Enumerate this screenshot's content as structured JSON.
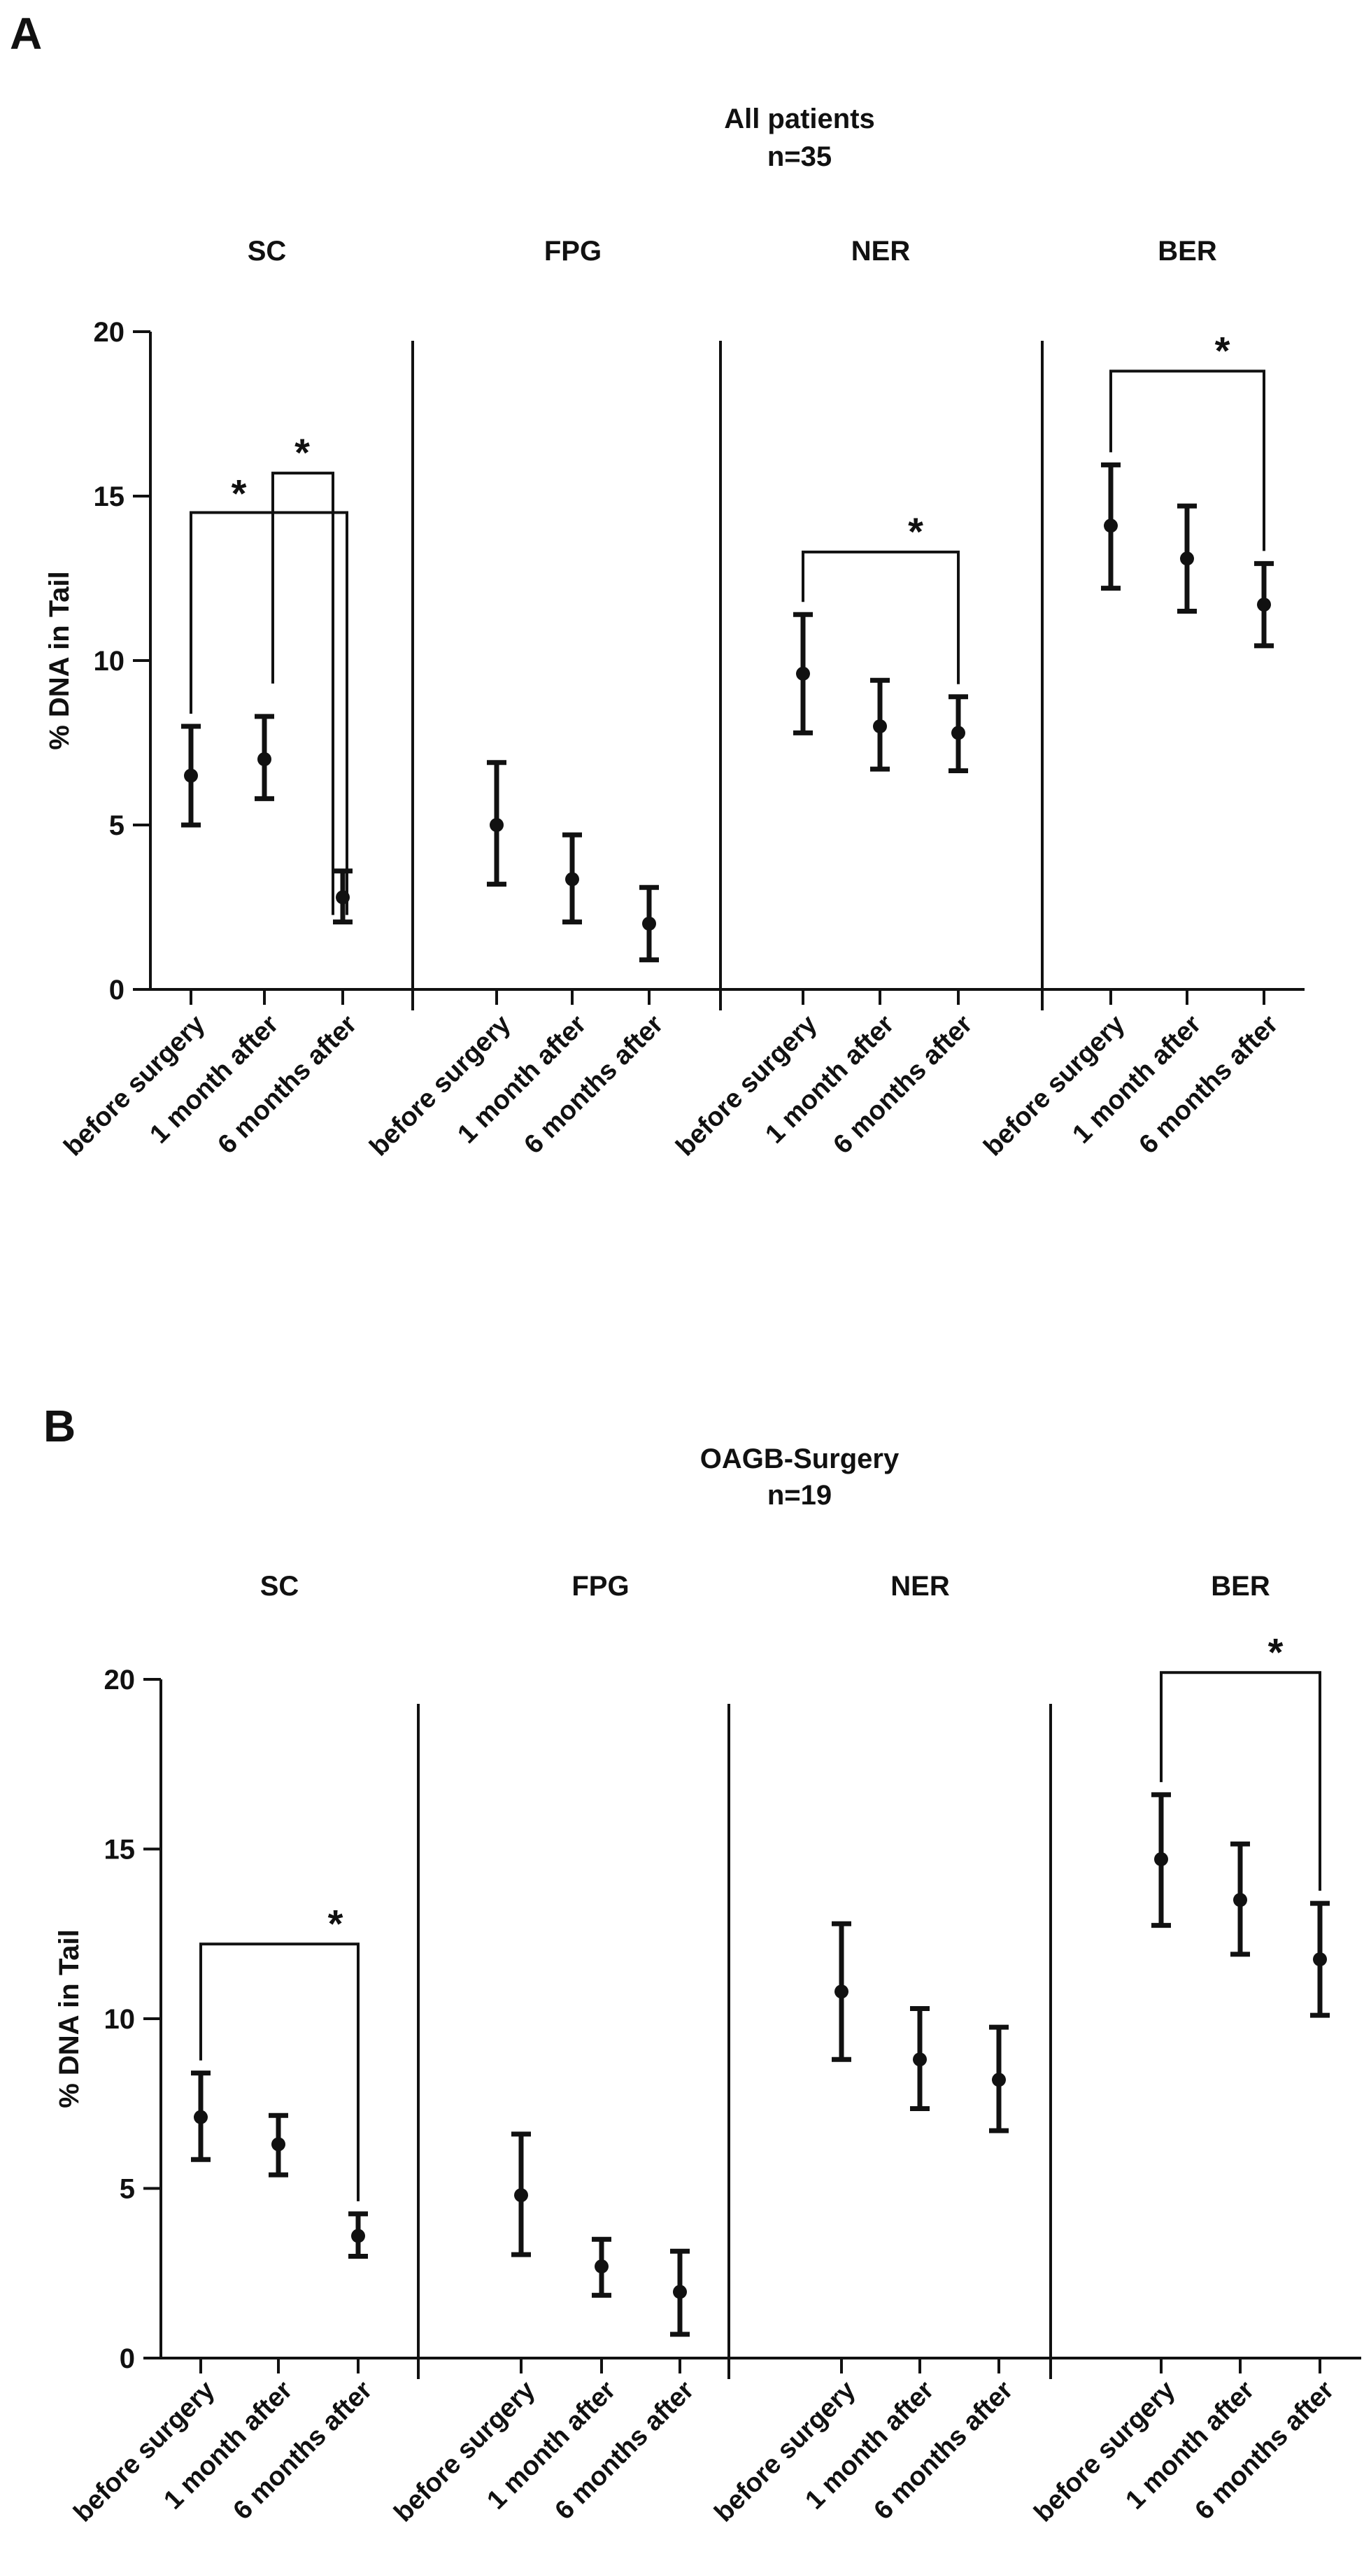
{
  "chart_data": [
    {
      "panel": "A",
      "type": "scatter",
      "title": "All patients",
      "subtitle": "n=35",
      "ylabel": "% DNA in Tail",
      "ylim": [
        0,
        20
      ],
      "yticks": [
        "0",
        "5",
        "10",
        "15",
        "20"
      ],
      "categories": [
        "before surgery",
        "1 month after",
        "6 months after"
      ],
      "groups": [
        {
          "name": "SC",
          "values": [
            6.5,
            7.0,
            2.8
          ],
          "err_low": [
            5.0,
            5.8,
            2.05
          ],
          "err_high": [
            8.0,
            8.3,
            3.6
          ]
        },
        {
          "name": "FPG",
          "values": [
            5.0,
            3.35,
            2.0
          ],
          "err_low": [
            3.2,
            2.05,
            0.9
          ],
          "err_high": [
            6.9,
            4.7,
            3.1
          ]
        },
        {
          "name": "NER",
          "values": [
            9.6,
            8.0,
            7.8
          ],
          "err_low": [
            7.8,
            6.7,
            6.65
          ],
          "err_high": [
            11.4,
            9.4,
            8.9
          ]
        },
        {
          "name": "BER",
          "values": [
            14.1,
            13.1,
            11.7
          ],
          "err_low": [
            12.2,
            11.5,
            10.45
          ],
          "err_high": [
            15.95,
            14.7,
            12.95
          ]
        }
      ],
      "annotations": [
        {
          "group": 0,
          "from": 0,
          "to": 2,
          "label": "*",
          "bracket_y": 14.5
        },
        {
          "group": 0,
          "from": 1,
          "to": 2,
          "label": "*",
          "bracket_y": 15.7
        },
        {
          "group": 2,
          "from": 0,
          "to": 2,
          "label": "*",
          "bracket_y": 13.3
        },
        {
          "group": 3,
          "from": 0,
          "to": 2,
          "label": "*",
          "bracket_y": 18.8
        }
      ]
    },
    {
      "panel": "B",
      "type": "scatter",
      "title": "OAGB-Surgery",
      "subtitle": "n=19",
      "ylabel": "% DNA in Tail",
      "ylim": [
        0,
        20
      ],
      "yticks": [
        "0",
        "5",
        "10",
        "15",
        "20"
      ],
      "categories": [
        "before surgery",
        "1 month after",
        "6 months after"
      ],
      "groups": [
        {
          "name": "SC",
          "values": [
            7.1,
            6.3,
            3.6
          ],
          "err_low": [
            5.85,
            5.4,
            3.0
          ],
          "err_high": [
            8.4,
            7.15,
            4.25
          ]
        },
        {
          "name": "FPG",
          "values": [
            4.8,
            2.7,
            1.95
          ],
          "err_low": [
            3.05,
            1.85,
            0.7
          ],
          "err_high": [
            6.6,
            3.5,
            3.15
          ]
        },
        {
          "name": "NER",
          "values": [
            10.8,
            8.8,
            8.2
          ],
          "err_low": [
            8.8,
            7.35,
            6.7
          ],
          "err_high": [
            12.8,
            10.3,
            9.75
          ]
        },
        {
          "name": "BER",
          "values": [
            14.7,
            13.5,
            11.75
          ],
          "err_low": [
            12.75,
            11.9,
            10.1
          ],
          "err_high": [
            16.6,
            15.15,
            13.4
          ]
        }
      ],
      "annotations": [
        {
          "group": 0,
          "from": 0,
          "to": 2,
          "label": "*",
          "bracket_y": 12.2
        },
        {
          "group": 3,
          "from": 0,
          "to": 2,
          "label": "*",
          "bracket_y": 20.2
        }
      ]
    }
  ]
}
